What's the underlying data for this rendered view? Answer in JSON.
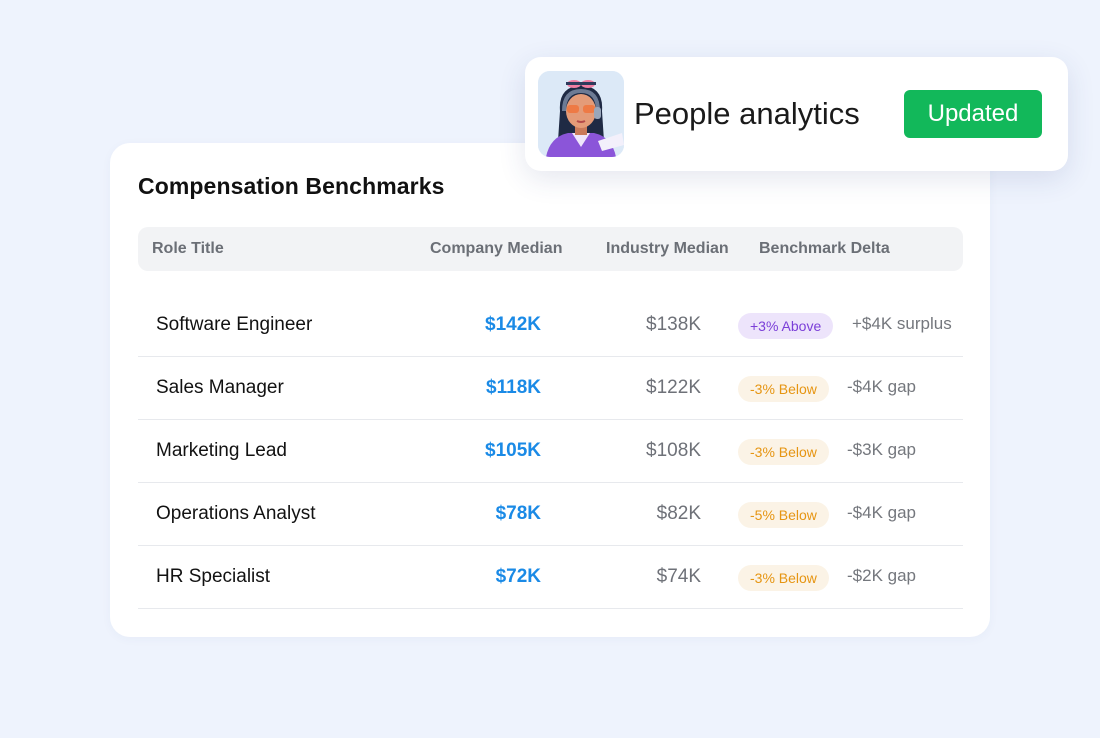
{
  "card": {
    "title": "Compensation Benchmarks",
    "headers": {
      "role": "Role Title",
      "company": "Company Median",
      "industry": "Industry Median",
      "delta": "Benchmark Delta"
    },
    "rows": [
      {
        "role": "Software Engineer",
        "company": "$142K",
        "industry": "$138K",
        "pill": "+3% Above",
        "pill_type": "above",
        "note": "+$4K surplus"
      },
      {
        "role": "Sales Manager",
        "company": "$118K",
        "industry": "$122K",
        "pill": "-3% Below",
        "pill_type": "below",
        "note": "-$4K gap"
      },
      {
        "role": "Marketing Lead",
        "company": "$105K",
        "industry": "$108K",
        "pill": "-3% Below",
        "pill_type": "below",
        "note": "-$3K gap"
      },
      {
        "role": "Operations Analyst",
        "company": "$78K",
        "industry": "$82K",
        "pill": "-5% Below",
        "pill_type": "below",
        "note": "-$4K gap"
      },
      {
        "role": "HR Specialist",
        "company": "$72K",
        "industry": "$74K",
        "pill": "-3% Below",
        "pill_type": "below",
        "note": "-$2K gap"
      }
    ]
  },
  "notification": {
    "avatar_icon": "person-avatar-icon",
    "text": "People analytics",
    "button_label": "Updated"
  },
  "colors": {
    "background": "#eef3fd",
    "company_value": "#1a8ae6",
    "above_pill_bg": "#ede4fb",
    "above_pill_text": "#7b3fd8",
    "below_pill_bg": "#fbf3e6",
    "below_pill_text": "#e69512",
    "updated_button": "#12b85a"
  }
}
